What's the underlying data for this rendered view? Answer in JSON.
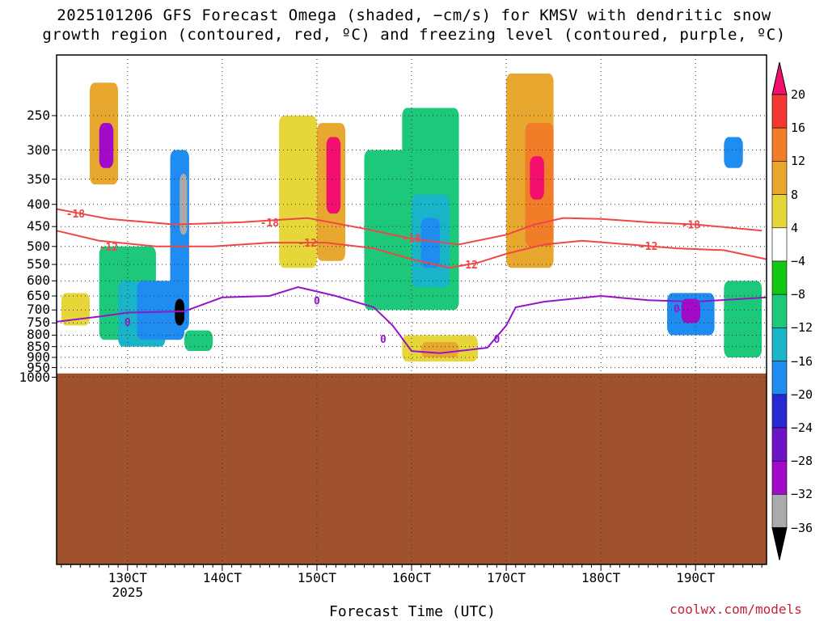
{
  "chart_data": {
    "type": "heatmap",
    "title_line1": "2025101206 GFS Forecast Omega (shaded, −cm/s) for KMSV with dendritic snow",
    "title_line2": "growth region (contoured, red, ºC) and freezing level (contoured, purple, ºC)",
    "xlabel": "Forecast Time (UTC)",
    "x_ticks": [
      "130CT",
      "140CT",
      "150CT",
      "160CT",
      "170CT",
      "180CT",
      "190CT"
    ],
    "x_year": "2025",
    "y_ticks": [
      "250",
      "300",
      "350",
      "400",
      "450",
      "500",
      "550",
      "600",
      "650",
      "700",
      "750",
      "800",
      "850",
      "900",
      "950",
      "1000"
    ],
    "y_scale": "log-pressure (hPa), inverted",
    "colorbar": {
      "labels": [
        "20",
        "16",
        "12",
        "8",
        "4",
        "−4",
        "−8",
        "−12",
        "−16",
        "−20",
        "−24",
        "−28",
        "−32",
        "−36"
      ],
      "colors": [
        "#f20f6e",
        "#f23a32",
        "#f27d28",
        "#e8a830",
        "#e6d63a",
        "#ffffff",
        "#12c712",
        "#1ec87a",
        "#1ab4c8",
        "#1e8cf0",
        "#2828d2",
        "#6e14c8",
        "#a00ac8",
        "#aaaaaa",
        "#000000"
      ]
    },
    "contours": {
      "dgz": {
        "color": "#f04646",
        "labels": [
          "-18",
          "-18",
          "-18",
          "-18",
          "-12",
          "-12",
          "-12",
          "-12"
        ],
        "minus18_hpa": [
          [
            122.5,
            410
          ],
          [
            128,
            432
          ],
          [
            135,
            445
          ],
          [
            142,
            440
          ],
          [
            149,
            430
          ],
          [
            155,
            455
          ],
          [
            160,
            480
          ],
          [
            165,
            495
          ],
          [
            170,
            470
          ],
          [
            173,
            445
          ],
          [
            176,
            430
          ],
          [
            180,
            432
          ],
          [
            185,
            440
          ],
          [
            190,
            445
          ],
          [
            197,
            460
          ]
        ],
        "minus12_hpa": [
          [
            122.5,
            460
          ],
          [
            127,
            485
          ],
          [
            133,
            500
          ],
          [
            139,
            500
          ],
          [
            145,
            490
          ],
          [
            151,
            490
          ],
          [
            156,
            505
          ],
          [
            160,
            535
          ],
          [
            164,
            560
          ],
          [
            167,
            545
          ],
          [
            170,
            520
          ],
          [
            174,
            495
          ],
          [
            178,
            485
          ],
          [
            183,
            495
          ],
          [
            188,
            505
          ],
          [
            193,
            510
          ],
          [
            197.5,
            535
          ]
        ]
      },
      "freezing": {
        "color": "#9614c8",
        "labels": [
          "0",
          "0",
          "0",
          "0",
          "0"
        ],
        "zero_hpa": [
          [
            122.5,
            745
          ],
          [
            127,
            725
          ],
          [
            130,
            710
          ],
          [
            136,
            705
          ],
          [
            140,
            655
          ],
          [
            145,
            650
          ],
          [
            148,
            620
          ],
          [
            152,
            650
          ],
          [
            156,
            690
          ],
          [
            158,
            760
          ],
          [
            160,
            870
          ],
          [
            163,
            880
          ],
          [
            166,
            865
          ],
          [
            168,
            855
          ],
          [
            170,
            760
          ],
          [
            171,
            690
          ],
          [
            174,
            670
          ],
          [
            180,
            650
          ],
          [
            185,
            665
          ],
          [
            190,
            670
          ],
          [
            197.5,
            655
          ]
        ]
      }
    },
    "shaded_cells": [
      {
        "t0": 123,
        "t1": 126,
        "p0": 640,
        "p1": 760,
        "val": 8
      },
      {
        "t0": 126,
        "t1": 129,
        "p0": 210,
        "p1": 360,
        "val": 12
      },
      {
        "t0": 127,
        "t1": 128.5,
        "p0": 260,
        "p1": 330,
        "val": -28
      },
      {
        "t0": 127,
        "t1": 133,
        "p0": 500,
        "p1": 820,
        "val": -8
      },
      {
        "t0": 129,
        "t1": 134,
        "p0": 600,
        "p1": 850,
        "val": -12
      },
      {
        "t0": 131,
        "t1": 136,
        "p0": 600,
        "p1": 820,
        "val": -16
      },
      {
        "t0": 134.5,
        "t1": 136.5,
        "p0": 300,
        "p1": 780,
        "val": -16
      },
      {
        "t0": 135.5,
        "t1": 136.3,
        "p0": 340,
        "p1": 470,
        "val": -32
      },
      {
        "t0": 135,
        "t1": 136,
        "p0": 660,
        "p1": 760,
        "val": -36
      },
      {
        "t0": 136,
        "t1": 139,
        "p0": 780,
        "p1": 870,
        "val": -8
      },
      {
        "t0": 146,
        "t1": 150,
        "p0": 250,
        "p1": 560,
        "val": 8
      },
      {
        "t0": 150,
        "t1": 153,
        "p0": 260,
        "p1": 540,
        "val": 12
      },
      {
        "t0": 151,
        "t1": 152.5,
        "p0": 280,
        "p1": 420,
        "val": 20
      },
      {
        "t0": 155,
        "t1": 160,
        "p0": 300,
        "p1": 700,
        "val": -8
      },
      {
        "t0": 159,
        "t1": 165,
        "p0": 240,
        "p1": 700,
        "val": -8
      },
      {
        "t0": 160,
        "t1": 164,
        "p0": 380,
        "p1": 620,
        "val": -12
      },
      {
        "t0": 161,
        "t1": 163,
        "p0": 430,
        "p1": 560,
        "val": -16
      },
      {
        "t0": 159,
        "t1": 167,
        "p0": 800,
        "p1": 920,
        "val": 8
      },
      {
        "t0": 161,
        "t1": 165,
        "p0": 830,
        "p1": 900,
        "val": 12
      },
      {
        "t0": 170,
        "t1": 175,
        "p0": 200,
        "p1": 560,
        "val": 12
      },
      {
        "t0": 172,
        "t1": 175,
        "p0": 260,
        "p1": 500,
        "val": 16
      },
      {
        "t0": 172.5,
        "t1": 174,
        "p0": 310,
        "p1": 390,
        "val": 20
      },
      {
        "t0": 187,
        "t1": 192,
        "p0": 640,
        "p1": 800,
        "val": -16
      },
      {
        "t0": 188.5,
        "t1": 190.5,
        "p0": 660,
        "p1": 750,
        "val": -28
      },
      {
        "t0": 193,
        "t1": 197,
        "p0": 600,
        "p1": 900,
        "val": -8
      },
      {
        "t0": 193,
        "t1": 195,
        "p0": 280,
        "p1": 330,
        "val": -16
      }
    ],
    "ground": {
      "color": "#a0522d",
      "top_hpa": 980
    }
  },
  "footer": {
    "credit": "coolwx.com/models"
  }
}
